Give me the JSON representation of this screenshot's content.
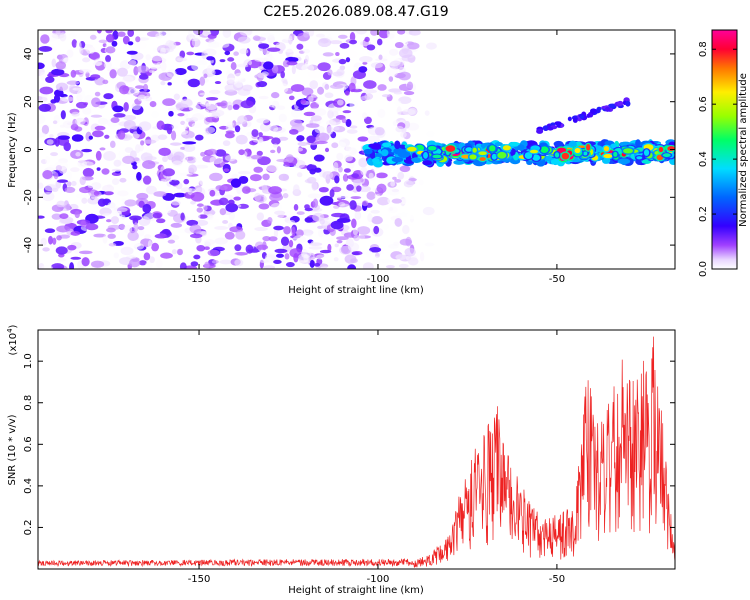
{
  "title": "C2E5.2026.089.08.47.G19",
  "chart_data": [
    {
      "type": "heatmap",
      "id": "spectrogram",
      "xlabel": "Height of straight line (km)",
      "ylabel": "Frequency (Hz)",
      "xlim": [
        -195,
        -17
      ],
      "ylim": [
        -50,
        50
      ],
      "xticks": [
        -150,
        -100,
        -50
      ],
      "yticks": [
        -40,
        -20,
        0,
        20,
        40
      ],
      "colorbar": {
        "label": "Normalized spectral amplitude",
        "range": [
          0.0,
          0.87
        ],
        "ticks": [
          0.0,
          0.2,
          0.4,
          0.6,
          0.8
        ],
        "colors": [
          "#ffffff",
          "#cc88ff",
          "#6600cc",
          "#0000ff",
          "#00ccff",
          "#00ff66",
          "#ccff00",
          "#ffcc00",
          "#ff3300",
          "#ff0099"
        ]
      },
      "features": {
        "noise_region_x": [
          -195,
          -90
        ],
        "noise_amplitude_range": [
          0.0,
          0.15
        ],
        "signal_band_x": [
          -103,
          -17
        ],
        "signal_band_center_hz_start": -2,
        "signal_band_center_hz_end": -1,
        "signal_band_width_hz": 8,
        "signal_peak_amplitude": 0.87,
        "side_feature": {
          "x": [
            -55,
            -30
          ],
          "y_hz": [
            8,
            20
          ]
        }
      }
    },
    {
      "type": "line",
      "id": "snr",
      "xlabel": "Height of straight line (km)",
      "ylabel": "SNR (10 * v/v)",
      "y_scale_label": "(x10",
      "y_scale_exp": "4",
      "xlim": [
        -195,
        -17
      ],
      "ylim": [
        0,
        1.15
      ],
      "xticks": [
        -150,
        -100,
        -50
      ],
      "yticks": [
        0.2,
        0.4,
        0.6,
        0.8,
        1.0
      ],
      "color": "#ee2222",
      "envelope": [
        {
          "x": -195,
          "y": 0.03
        },
        {
          "x": -90,
          "y": 0.04
        },
        {
          "x": -85,
          "y": 0.08
        },
        {
          "x": -80,
          "y": 0.18
        },
        {
          "x": -75,
          "y": 0.52
        },
        {
          "x": -70,
          "y": 0.68
        },
        {
          "x": -67,
          "y": 0.84
        },
        {
          "x": -63,
          "y": 0.52
        },
        {
          "x": -58,
          "y": 0.34
        },
        {
          "x": -50,
          "y": 0.26
        },
        {
          "x": -45,
          "y": 0.32
        },
        {
          "x": -42,
          "y": 0.95
        },
        {
          "x": -37,
          "y": 0.72
        },
        {
          "x": -32,
          "y": 1.05
        },
        {
          "x": -28,
          "y": 0.9
        },
        {
          "x": -23,
          "y": 1.13
        },
        {
          "x": -20,
          "y": 0.65
        },
        {
          "x": -18,
          "y": 0.25
        },
        {
          "x": -17,
          "y": 0.08
        }
      ]
    }
  ]
}
